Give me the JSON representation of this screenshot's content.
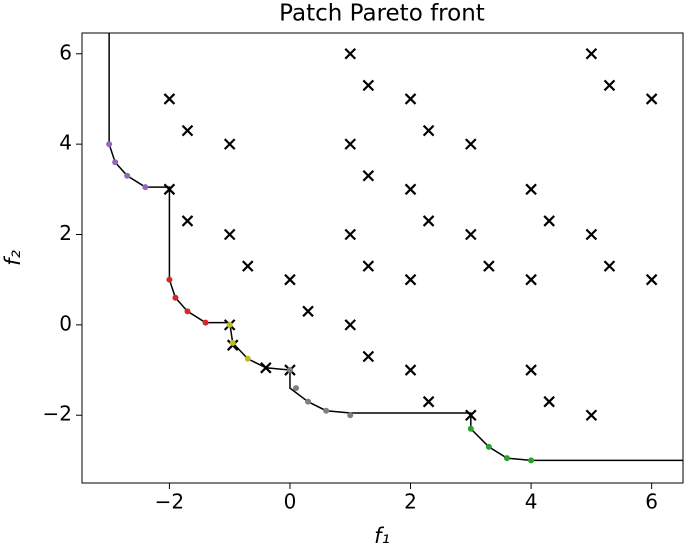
{
  "chart_data": {
    "type": "scatter",
    "title": "Patch Pareto front",
    "xlabel": "f₁",
    "ylabel": "f₂",
    "xlim": [
      -3.45,
      6.52
    ],
    "ylim": [
      -3.5,
      6.46
    ],
    "xticks": [
      {
        "value": -2,
        "label": "−2"
      },
      0,
      2,
      4,
      6
    ],
    "yticks": [
      {
        "value": -2,
        "label": "−2"
      },
      0,
      2,
      4,
      6
    ],
    "series": [
      {
        "marker": "line",
        "color": "#000000",
        "x": [
          -3,
          -3,
          -2.9,
          -2.7,
          -2.4,
          -2,
          -2,
          -1.9,
          -1.7,
          -1.4,
          -1,
          -0.95,
          -0.7,
          -0.4,
          0,
          0,
          0.3,
          0.6,
          1,
          3,
          3,
          3.3,
          3.6,
          4,
          6.6
        ],
        "values": [
          6.6,
          4,
          3.6,
          3.3,
          3.05,
          3.05,
          1,
          0.6,
          0.3,
          0.05,
          0.05,
          -0.4,
          -0.75,
          -0.95,
          -1,
          -1.4,
          -1.7,
          -1.9,
          -1.95,
          -1.95,
          -2.3,
          -2.7,
          -2.95,
          -3,
          -3
        ]
      },
      {
        "marker": "x",
        "color": "#000000",
        "x": [
          1,
          5,
          -2,
          1.3,
          2,
          5.3,
          6,
          -1.7,
          2.3,
          -1,
          1,
          3,
          1.3,
          -2,
          2,
          4,
          -1.7,
          2.3,
          4.3,
          -1,
          1,
          3,
          5,
          -0.7,
          1.3,
          3.3,
          5.3,
          0,
          2,
          4,
          6,
          0.3,
          -1,
          1,
          -0.95,
          1.3,
          -0.4,
          0,
          2,
          4,
          2.3,
          4.3,
          3,
          5
        ],
        "values": [
          6,
          6,
          5,
          5.3,
          5,
          5.3,
          5,
          4.3,
          4.3,
          4,
          4,
          4,
          3.3,
          3,
          3,
          3,
          2.3,
          2.3,
          2.3,
          2,
          2,
          2,
          2,
          1.3,
          1.3,
          1.3,
          1.3,
          1,
          1,
          1,
          1,
          0.3,
          0,
          0,
          -0.45,
          -0.7,
          -0.95,
          -1,
          -1,
          -1,
          -1.7,
          -1.7,
          -2,
          -2
        ]
      },
      {
        "marker": "dot",
        "color": "#9467bd",
        "x": [
          -3,
          -2.9,
          -2.7,
          -2.4
        ],
        "values": [
          4,
          3.6,
          3.3,
          3.05
        ]
      },
      {
        "marker": "dot",
        "color": "#d62728",
        "x": [
          -2,
          -1.9,
          -1.7,
          -1.4
        ],
        "values": [
          1,
          0.6,
          0.3,
          0.05
        ]
      },
      {
        "marker": "dot",
        "color": "#bcbd22",
        "x": [
          -1,
          -0.95,
          -0.7
        ],
        "values": [
          0,
          -0.4,
          -0.75
        ]
      },
      {
        "marker": "dot",
        "color": "#7f7f7f",
        "x": [
          0,
          0.1,
          0.3,
          0.6,
          1
        ],
        "values": [
          -1,
          -1.4,
          -1.7,
          -1.9,
          -2
        ]
      },
      {
        "marker": "dot",
        "color": "#2ca02c",
        "x": [
          3,
          3.3,
          3.6,
          4
        ],
        "values": [
          -2.3,
          -2.7,
          -2.95,
          -3
        ]
      }
    ]
  }
}
